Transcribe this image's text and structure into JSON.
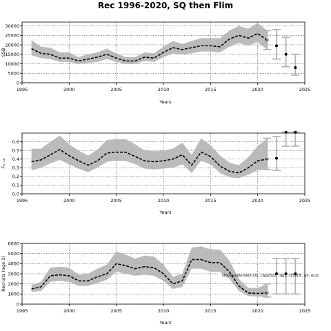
{
  "figure": {
    "title": "Rec 1996-2020, SQ then Flim",
    "credit": "stockassessment.org, Lwg2022. rdg1, r15918 , git: ec2c"
  },
  "chart_data": [
    {
      "type": "line",
      "ylabel": "SSB",
      "xlabel": "Years",
      "xlim": [
        1995,
        2025
      ],
      "ylim": [
        0,
        32000
      ],
      "x_ticks": [
        1995,
        2000,
        2005,
        2010,
        2015,
        2020,
        2025
      ],
      "y_ticks": [
        0,
        5000,
        10000,
        15000,
        20000,
        25000,
        30000
      ],
      "grid": "dotted",
      "series": [
        {
          "role": "estimate",
          "x": [
            1996,
            1997,
            1998,
            1999,
            2000,
            2001,
            2002,
            2003,
            2004,
            2005,
            2006,
            2007,
            2008,
            2009,
            2010,
            2011,
            2012,
            2013,
            2014,
            2015,
            2016,
            2017,
            2018,
            2019,
            2020,
            2021
          ],
          "values": [
            18000,
            15500,
            15000,
            13000,
            13000,
            11500,
            12500,
            13500,
            15000,
            13000,
            11500,
            11500,
            13500,
            13000,
            16000,
            18500,
            17500,
            18500,
            19500,
            19500,
            19000,
            23000,
            25000,
            23500,
            26000,
            22500
          ],
          "lower": [
            14500,
            13000,
            12500,
            11000,
            11000,
            10000,
            10500,
            11000,
            12500,
            11000,
            10000,
            10000,
            11500,
            11000,
            13500,
            15500,
            15000,
            15500,
            16500,
            16500,
            16000,
            19000,
            21000,
            19500,
            21500,
            17500
          ],
          "upper": [
            22500,
            19000,
            18500,
            16000,
            16000,
            13500,
            15000,
            16000,
            18000,
            15500,
            13500,
            13500,
            16000,
            15500,
            19000,
            22000,
            20500,
            22000,
            23500,
            23500,
            23500,
            27500,
            30000,
            28500,
            31500,
            27500
          ]
        },
        {
          "role": "forecast",
          "x": [
            2022,
            2023,
            2024
          ],
          "values": [
            19500,
            15000,
            8000
          ],
          "lower": [
            12500,
            8500,
            4000
          ],
          "upper": [
            28000,
            24000,
            15000
          ]
        }
      ]
    },
    {
      "type": "line",
      "ylabel": "F₆₋₁₀",
      "xlabel": "Years",
      "xlim": [
        1995,
        2025
      ],
      "ylim": [
        0,
        0.7
      ],
      "x_ticks": [
        1995,
        2000,
        2005,
        2010,
        2015,
        2020,
        2025
      ],
      "y_ticks": [
        0.0,
        0.1,
        0.2,
        0.3,
        0.4,
        0.5,
        0.6
      ],
      "grid": "dotted",
      "series": [
        {
          "role": "estimate",
          "x": [
            1996,
            1997,
            1998,
            1999,
            2000,
            2001,
            2002,
            2003,
            2004,
            2005,
            2006,
            2007,
            2008,
            2009,
            2010,
            2011,
            2012,
            2013,
            2014,
            2015,
            2016,
            2017,
            2018,
            2019,
            2020,
            2021
          ],
          "values": [
            0.37,
            0.39,
            0.45,
            0.51,
            0.44,
            0.38,
            0.33,
            0.38,
            0.47,
            0.48,
            0.48,
            0.43,
            0.38,
            0.37,
            0.38,
            0.4,
            0.45,
            0.33,
            0.48,
            0.43,
            0.32,
            0.26,
            0.24,
            0.3,
            0.38,
            0.4
          ],
          "lower": [
            0.27,
            0.3,
            0.35,
            0.39,
            0.34,
            0.29,
            0.25,
            0.3,
            0.37,
            0.38,
            0.38,
            0.34,
            0.29,
            0.28,
            0.29,
            0.3,
            0.34,
            0.24,
            0.38,
            0.34,
            0.24,
            0.19,
            0.18,
            0.22,
            0.27,
            0.28
          ],
          "upper": [
            0.52,
            0.52,
            0.6,
            0.67,
            0.57,
            0.5,
            0.44,
            0.51,
            0.62,
            0.63,
            0.63,
            0.57,
            0.5,
            0.49,
            0.5,
            0.52,
            0.59,
            0.45,
            0.64,
            0.56,
            0.44,
            0.36,
            0.33,
            0.42,
            0.55,
            0.64
          ]
        },
        {
          "role": "forecast",
          "x": [
            2022,
            2023,
            2024
          ],
          "values": [
            0.41,
            0.71,
            0.71
          ],
          "lower": [
            0.27,
            0.55,
            0.55
          ],
          "upper": [
            0.66,
            0.71,
            0.71
          ]
        }
      ]
    },
    {
      "type": "line",
      "ylabel": "Recruits (age 3)",
      "xlabel": "Years",
      "xlim": [
        1995,
        2025
      ],
      "ylim": [
        0,
        6000
      ],
      "x_ticks": [
        1995,
        2000,
        2005,
        2010,
        2015,
        2020,
        2025
      ],
      "y_ticks": [
        0,
        1000,
        2000,
        3000,
        4000,
        5000,
        6000
      ],
      "grid": "dotted",
      "series": [
        {
          "role": "estimate",
          "x": [
            1996,
            1997,
            1998,
            1999,
            2000,
            2001,
            2002,
            2003,
            2004,
            2005,
            2006,
            2007,
            2008,
            2009,
            2010,
            2011,
            2012,
            2013,
            2014,
            2015,
            2016,
            2017,
            2018,
            2019,
            2020,
            2021
          ],
          "values": [
            1500,
            1700,
            2800,
            2900,
            2800,
            2300,
            2300,
            2700,
            3000,
            4000,
            3800,
            3500,
            3700,
            3600,
            3000,
            2000,
            2300,
            4400,
            4400,
            4100,
            4100,
            3200,
            1800,
            1100,
            1050,
            1100
          ],
          "lower": [
            1200,
            1300,
            2200,
            2300,
            2200,
            1800,
            1800,
            2100,
            2400,
            3200,
            3000,
            2800,
            2900,
            2800,
            2300,
            1500,
            1700,
            3500,
            3500,
            3200,
            3200,
            2500,
            1300,
            800,
            750,
            700
          ],
          "upper": [
            1900,
            2200,
            3600,
            3700,
            3600,
            2900,
            3000,
            3500,
            3900,
            5200,
            4900,
            4500,
            4800,
            4700,
            3900,
            2700,
            3000,
            5600,
            5700,
            5400,
            5400,
            4300,
            2500,
            1600,
            1600,
            2000
          ]
        },
        {
          "role": "forecast",
          "x": [
            2022,
            2023,
            2024
          ],
          "values": [
            3000,
            3000,
            3000
          ],
          "lower": [
            1000,
            1000,
            1000
          ],
          "upper": [
            4500,
            4500,
            4500
          ]
        }
      ]
    }
  ],
  "colors": {
    "band": "#b4b4b4",
    "line": "#000000",
    "forecast_bar": "#b4b4b4",
    "forecast_point": "#000000"
  }
}
